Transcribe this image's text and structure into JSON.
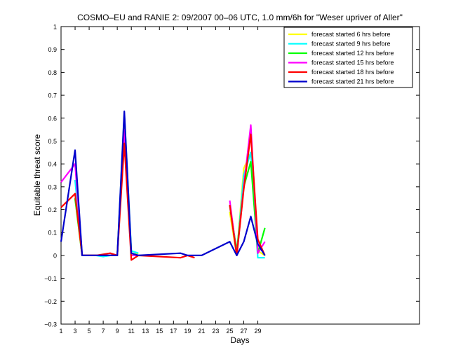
{
  "chart_data": {
    "type": "line",
    "title": "COSMO–EU and RANIE 2: 09/2007 00–06 UTC, 1.0 mm/6h for \"Weser upriver of Aller\"",
    "xlabel": "Days",
    "ylabel": "Equitable threat score",
    "xlim": [
      1,
      52
    ],
    "ylim": [
      -0.3,
      1
    ],
    "xticks": [
      1,
      3,
      5,
      7,
      9,
      11,
      13,
      15,
      17,
      19,
      21,
      23,
      25,
      27,
      29
    ],
    "yticks": [
      -0.3,
      -0.2,
      -0.1,
      0,
      0.1,
      0.2,
      0.3,
      0.4,
      0.5,
      0.6,
      0.7,
      0.8,
      0.9,
      1
    ],
    "grid": false,
    "legend_position": "top-right",
    "series": [
      {
        "name": "forecast started 6 hrs before",
        "color": "#ffff00",
        "x": [
          1,
          3,
          4,
          5,
          6,
          7,
          8,
          9,
          10,
          11,
          12,
          18,
          19,
          20,
          21,
          25,
          26,
          27,
          28,
          29,
          30
        ],
        "y": [
          null,
          0.25,
          0,
          0,
          0,
          0,
          0,
          0,
          0.58,
          0,
          0.01,
          null,
          null,
          null,
          null,
          0.19,
          0,
          0.38,
          0.45,
          0.02,
          0
        ]
      },
      {
        "name": "forecast started 9 hrs before",
        "color": "#00ffff",
        "x": [
          1,
          3,
          4,
          5,
          6,
          7,
          8,
          9,
          10,
          11,
          12,
          18,
          19,
          20,
          21,
          25,
          26,
          27,
          28,
          29,
          30
        ],
        "y": [
          null,
          0.33,
          0,
          0,
          0,
          -0.005,
          0,
          0,
          0.62,
          0.02,
          0.01,
          null,
          null,
          null,
          null,
          0.22,
          0,
          0.35,
          0.45,
          -0.01,
          -0.01
        ]
      },
      {
        "name": "forecast started 12 hrs before",
        "color": "#00ff00",
        "x": [
          1,
          3,
          4,
          5,
          6,
          7,
          8,
          9,
          10,
          11,
          12,
          18,
          19,
          20,
          21,
          25,
          26,
          27,
          28,
          29,
          30
        ],
        "y": [
          null,
          0.25,
          0,
          0,
          0,
          0,
          0,
          0,
          0.58,
          0.01,
          0,
          null,
          null,
          null,
          null,
          0.22,
          0.02,
          0.3,
          0.41,
          0.01,
          0.12
        ]
      },
      {
        "name": "forecast started 15 hrs before",
        "color": "#ff00ff",
        "x": [
          1,
          3,
          4,
          5,
          6,
          7,
          8,
          9,
          10,
          11,
          12,
          18,
          19,
          20,
          21,
          25,
          26,
          27,
          28,
          29,
          30
        ],
        "y": [
          0.32,
          0.4,
          0,
          0,
          0,
          0,
          0,
          0,
          0.55,
          0,
          0,
          null,
          null,
          null,
          null,
          0.24,
          0,
          0.3,
          0.57,
          0.01,
          0.06
        ]
      },
      {
        "name": "forecast started 18 hrs before",
        "color": "#ff0000",
        "x": [
          1,
          3,
          4,
          5,
          6,
          7,
          8,
          9,
          10,
          11,
          12,
          18,
          19,
          20,
          21,
          25,
          26,
          27,
          28,
          29,
          30
        ],
        "y": [
          0.21,
          0.27,
          0,
          0,
          0,
          0.005,
          0.01,
          0,
          0.49,
          -0.02,
          0,
          -0.01,
          0,
          -0.01,
          null,
          0.22,
          0,
          0.29,
          0.53,
          0.07,
          0
        ]
      },
      {
        "name": "forecast started 21 hrs before",
        "color": "#0000cc",
        "x": [
          1,
          3,
          4,
          5,
          6,
          7,
          8,
          9,
          10,
          11,
          12,
          18,
          19,
          20,
          21,
          25,
          26,
          27,
          28,
          29,
          30
        ],
        "y": [
          0.06,
          0.46,
          0,
          0,
          0,
          0,
          0,
          0,
          0.63,
          0.01,
          0,
          0.01,
          0,
          0,
          0,
          0.06,
          0,
          0.06,
          0.17,
          0.05,
          0
        ]
      }
    ]
  }
}
